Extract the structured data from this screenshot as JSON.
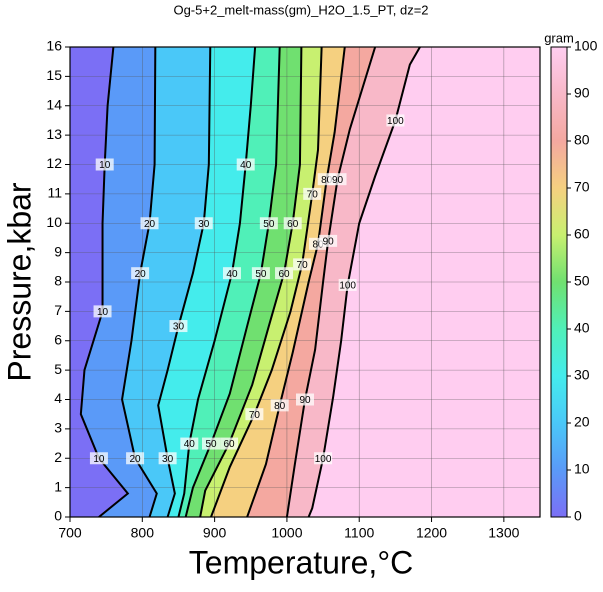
{
  "chart_data": {
    "type": "contour",
    "title": "Og-5+2_melt-mass(gm)_H2O_1.5_PT, dz=2",
    "x_label": "Temperature,°C",
    "y_label": "Pressure,kbar",
    "xlim": [
      700,
      1350
    ],
    "xticks": [
      700,
      800,
      900,
      1000,
      1100,
      1200,
      1300
    ],
    "ylim": [
      0,
      16
    ],
    "yticks": [
      0,
      1,
      2,
      3,
      4,
      5,
      6,
      7,
      8,
      9,
      10,
      11,
      12,
      13,
      14,
      15,
      16
    ],
    "grid": true,
    "base_color": "#7b6ff5",
    "colorbar_label": "gram",
    "colorbar_lim": [
      0,
      100
    ],
    "colorbar_ticks": [
      0,
      10,
      20,
      30,
      40,
      50,
      60,
      70,
      80,
      90,
      100
    ],
    "contours": [
      {
        "level": 10,
        "color": "#5a9af8",
        "x": [
          740,
          780,
          740,
          715,
          720,
          745,
          745,
          745,
          748,
          752,
          760
        ],
        "y": [
          0,
          0.8,
          2,
          3.5,
          5,
          7,
          8.5,
          10,
          12,
          14,
          16
        ]
      },
      {
        "level": 20,
        "color": "#4ac8f8",
        "x": [
          810,
          820,
          790,
          772,
          785,
          797,
          810,
          817,
          818
        ],
        "y": [
          0,
          0.8,
          2,
          4,
          6,
          8.3,
          10,
          12,
          16
        ]
      },
      {
        "level": 30,
        "color": "#44ecec",
        "x": [
          835,
          845,
          835,
          822,
          835,
          850,
          870,
          885,
          892,
          894
        ],
        "y": [
          0,
          0.8,
          2,
          3.8,
          5,
          6.5,
          8.3,
          10,
          12,
          16
        ]
      },
      {
        "level": 40,
        "color": "#50f0b8",
        "x": [
          850,
          858,
          865,
          877,
          900,
          924,
          935,
          943,
          950,
          956
        ],
        "y": [
          0,
          0.8,
          2.5,
          4,
          6,
          8.3,
          10,
          12,
          14,
          16
        ]
      },
      {
        "level": 50,
        "color": "#70e070",
        "x": [
          860,
          870,
          895,
          921,
          945,
          964,
          975,
          985,
          990
        ],
        "y": [
          0,
          1,
          2.5,
          4.2,
          6.5,
          8.3,
          10,
          12,
          16
        ]
      },
      {
        "level": 60,
        "color": "#c8f070",
        "x": [
          880,
          887,
          920,
          952,
          975,
          996,
          1008,
          1018,
          1020
        ],
        "y": [
          0,
          0.9,
          2.5,
          4.5,
          6.5,
          8.3,
          10,
          12,
          16
        ]
      },
      {
        "level": 70,
        "color": "#f5d080",
        "x": [
          895,
          921,
          955,
          979,
          1005,
          1021,
          1035,
          1043,
          1048
        ],
        "y": [
          0,
          1.7,
          3.5,
          5,
          7,
          8.6,
          11,
          12.5,
          16
        ]
      },
      {
        "level": 80,
        "color": "#f4a8a0",
        "x": [
          945,
          971,
          990,
          1008,
          1030,
          1043,
          1055,
          1066,
          1080
        ],
        "y": [
          0,
          1.8,
          3.8,
          5.6,
          8,
          9.3,
          11.5,
          13.1,
          16
        ]
      },
      {
        "level": 90,
        "color": "#f8b8c8",
        "x": [
          1000,
          1011,
          1025,
          1039,
          1050,
          1057,
          1070,
          1087,
          1122
        ],
        "y": [
          0,
          1.8,
          4,
          5.7,
          8,
          9.4,
          11.5,
          13.2,
          16
        ]
      },
      {
        "level": 100,
        "color": "#ffcdf0",
        "x": [
          1030,
          1035,
          1050,
          1064,
          1075,
          1084,
          1100,
          1122,
          1150,
          1170,
          1184
        ],
        "y": [
          0,
          0.3,
          2,
          4.1,
          6,
          7.9,
          10,
          11.6,
          13.5,
          15.4,
          16
        ]
      }
    ]
  }
}
